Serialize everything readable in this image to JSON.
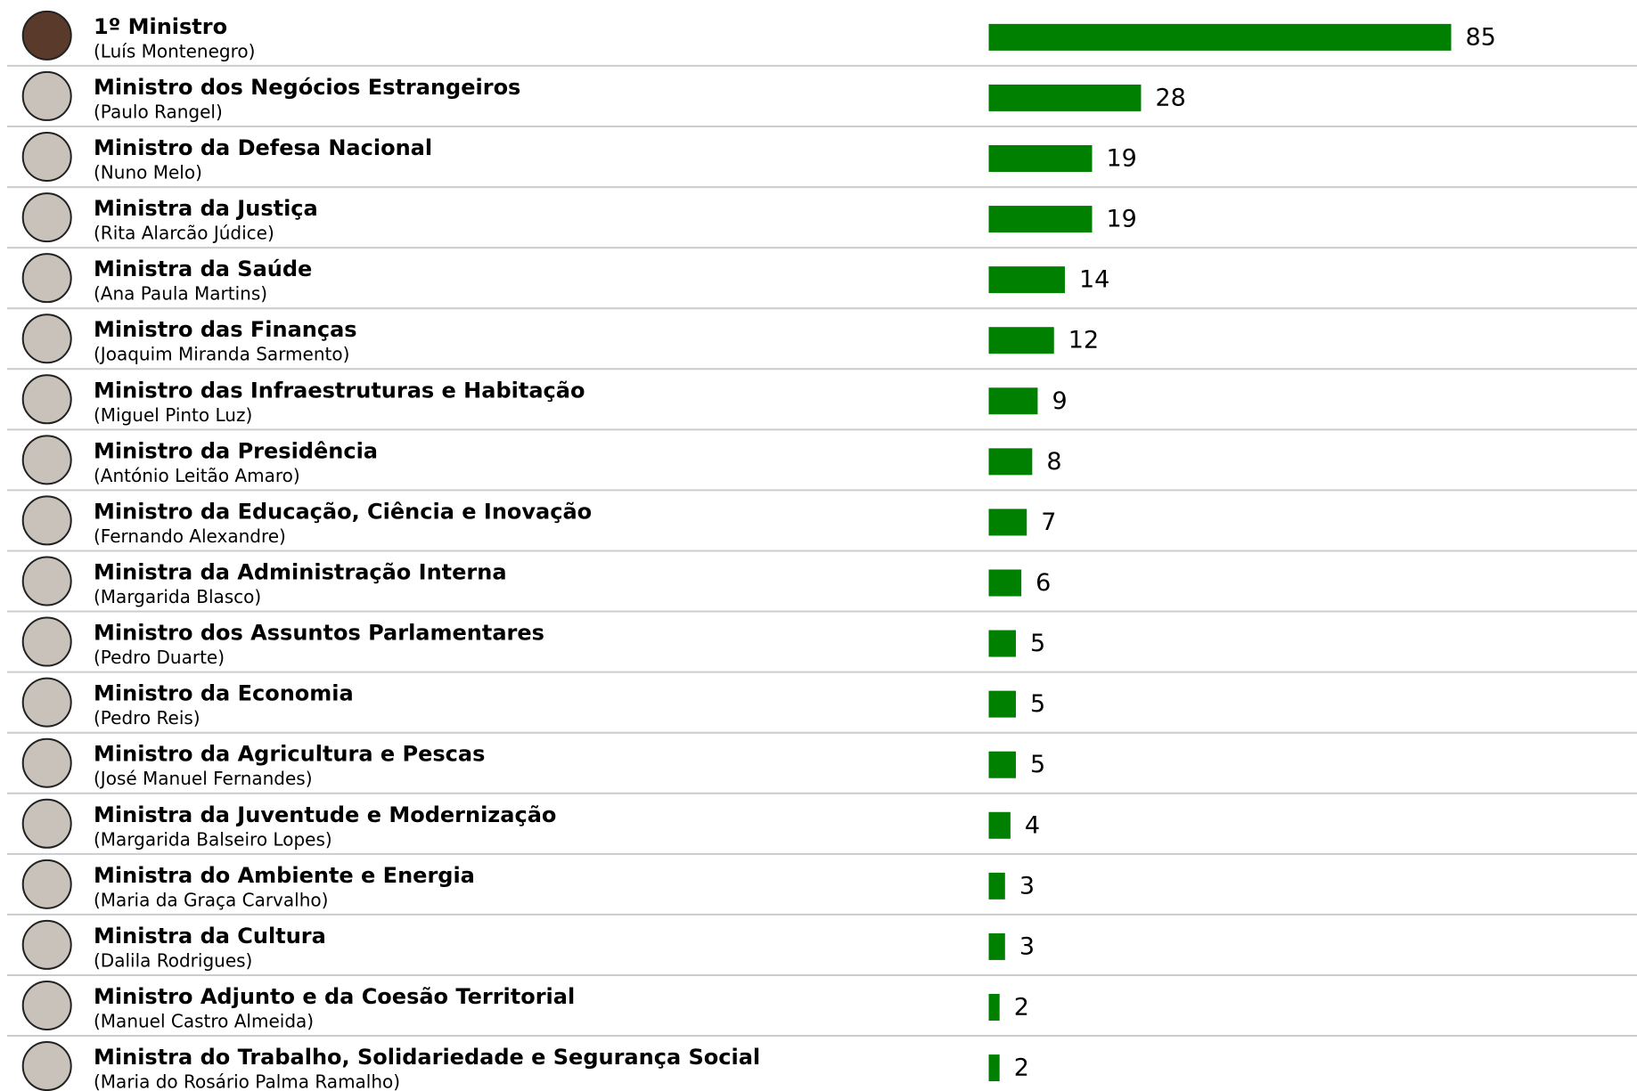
{
  "chart_data": {
    "type": "bar",
    "orientation": "horizontal",
    "color": "#008000",
    "categories": [
      "1º Ministro",
      "Ministro dos Negócios Estrangeiros",
      "Ministro da Defesa Nacional",
      "Ministra da Justiça",
      "Ministra da Saúde",
      "Ministro das Finanças",
      "Ministro das Infraestruturas e Habitação",
      "Ministro da Presidência",
      "Ministro da Educação, Ciência e Inovação",
      "Ministra da Administração Interna",
      "Ministro dos Assuntos Parlamentares",
      "Ministro da Economia",
      "Ministro da Agricultura e Pescas",
      "Ministra da Juventude e Modernização",
      "Ministra do Ambiente e Energia",
      "Ministra da Cultura",
      "Ministro Adjunto e da Coesão Territorial",
      "Ministra do Trabalho, Solidariedade e Segurança Social"
    ],
    "sublabels": [
      "(Luís Montenegro)",
      "(Paulo Rangel)",
      "(Nuno Melo)",
      "(Rita Alarcão Júdice)",
      "(Ana Paula Martins)",
      "(Joaquim Miranda Sarmento)",
      "(Miguel Pinto Luz)",
      "(António Leitão Amaro)",
      "(Fernando Alexandre)",
      "(Margarida Blasco)",
      "(Pedro Duarte)",
      "(Pedro Reis)",
      "(José Manuel Fernandes)",
      "(Margarida Balseiro Lopes)",
      "(Maria da Graça Carvalho)",
      "(Dalila Rodrigues)",
      "(Manuel Castro Almeida)",
      "(Maria do Rosário Palma Ramalho)"
    ],
    "values": [
      85,
      28,
      19,
      19,
      14,
      12,
      9,
      8,
      7,
      6,
      5,
      5,
      5,
      4,
      3,
      3,
      2,
      2
    ]
  }
}
